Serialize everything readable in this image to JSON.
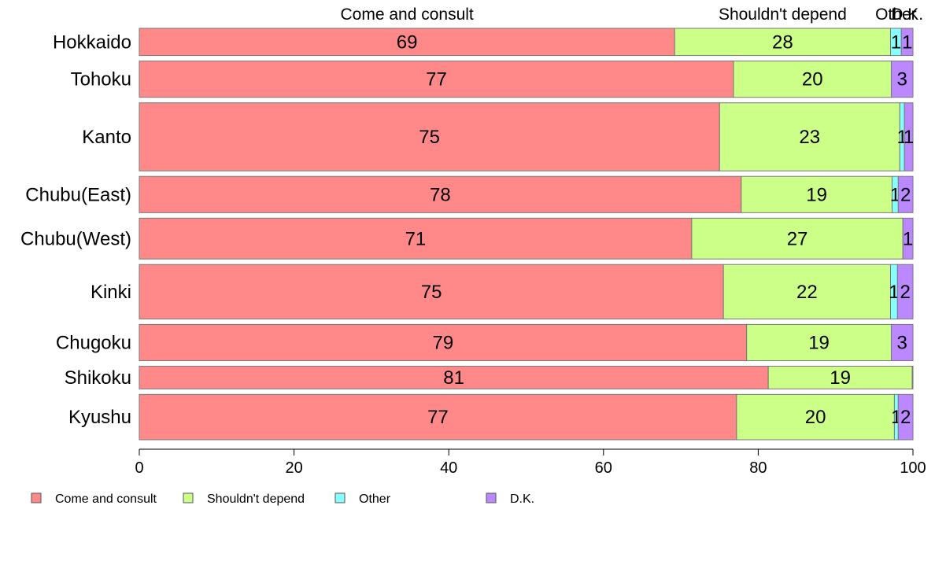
{
  "chart_data": {
    "type": "bar",
    "orientation": "horizontal",
    "stacked": true,
    "categories": [
      "Hokkaido",
      "Tohoku",
      "Kanto",
      "Chubu(East)",
      "Chubu(West)",
      "Kinki",
      "Chugoku",
      "Shikoku",
      "Kyushu"
    ],
    "category_weights": [
      0.6,
      0.8,
      1.5,
      0.8,
      0.9,
      1.2,
      0.8,
      0.5,
      1.0
    ],
    "series": [
      {
        "name": "Come and consult",
        "color": "#ff8888",
        "values": [
          69.2,
          76.8,
          75.0,
          77.8,
          71.4,
          75.5,
          78.5,
          81.3,
          77.2
        ],
        "labels": [
          "69",
          "77",
          "75",
          "78",
          "71",
          "75",
          "79",
          "81",
          "77"
        ]
      },
      {
        "name": "Shouldn't depend",
        "color": "#ccff88",
        "values": [
          27.9,
          20.4,
          23.3,
          19.5,
          27.3,
          21.6,
          18.7,
          18.6,
          20.4
        ],
        "labels": [
          "28",
          "20",
          "23",
          "19",
          "27",
          "22",
          "19",
          "19",
          "20"
        ]
      },
      {
        "name": "Other",
        "color": "#88ffff",
        "values": [
          1.4,
          0.0,
          0.6,
          0.8,
          0.0,
          0.9,
          0.0,
          0.0,
          0.5
        ],
        "labels": [
          "1",
          "",
          "1",
          "1",
          "",
          "1",
          "",
          "",
          "1"
        ]
      },
      {
        "name": "D.K.",
        "color": "#bb88ff",
        "values": [
          1.5,
          2.8,
          1.1,
          1.9,
          1.3,
          2.0,
          2.8,
          0.1,
          1.9
        ],
        "labels": [
          "1",
          "3",
          "1",
          "2",
          "1",
          "2",
          "3",
          "",
          "2"
        ]
      }
    ],
    "top_labels": [
      "Come and consult",
      "Shouldn't depend",
      "Other",
      "D.K."
    ],
    "xlim": [
      0,
      100
    ],
    "xticks": [
      "0",
      "20",
      "40",
      "60",
      "80",
      "100"
    ],
    "xlabel": "",
    "ylabel": "",
    "grid": false,
    "legend": {
      "position": "bottom-left",
      "entries": [
        "Come and consult",
        "Shouldn't depend",
        "Other",
        "D.K."
      ]
    },
    "border_color": "#777777"
  }
}
